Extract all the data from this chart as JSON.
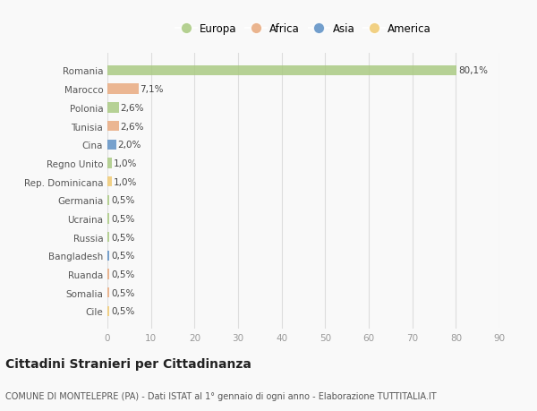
{
  "countries": [
    "Romania",
    "Marocco",
    "Polonia",
    "Tunisia",
    "Cina",
    "Regno Unito",
    "Rep. Dominicana",
    "Germania",
    "Ucraina",
    "Russia",
    "Bangladesh",
    "Ruanda",
    "Somalia",
    "Cile"
  ],
  "values": [
    80.1,
    7.1,
    2.6,
    2.6,
    2.0,
    1.0,
    1.0,
    0.5,
    0.5,
    0.5,
    0.5,
    0.5,
    0.5,
    0.5
  ],
  "labels": [
    "80,1%",
    "7,1%",
    "2,6%",
    "2,6%",
    "2,0%",
    "1,0%",
    "1,0%",
    "0,5%",
    "0,5%",
    "0,5%",
    "0,5%",
    "0,5%",
    "0,5%",
    "0,5%"
  ],
  "continents": [
    "Europa",
    "Africa",
    "Europa",
    "Africa",
    "Asia",
    "Europa",
    "America",
    "Europa",
    "Europa",
    "Europa",
    "Asia",
    "Africa",
    "Africa",
    "America"
  ],
  "continent_colors": {
    "Europa": "#a8c97f",
    "Africa": "#e8a87c",
    "Asia": "#5b8ec4",
    "America": "#f0c96e"
  },
  "legend_order": [
    "Europa",
    "Africa",
    "Asia",
    "America"
  ],
  "title": "Cittadini Stranieri per Cittadinanza",
  "subtitle": "COMUNE DI MONTELEPRE (PA) - Dati ISTAT al 1° gennaio di ogni anno - Elaborazione TUTTITALIA.IT",
  "xlim": [
    0,
    90
  ],
  "xticks": [
    0,
    10,
    20,
    30,
    40,
    50,
    60,
    70,
    80,
    90
  ],
  "background_color": "#f9f9f9",
  "grid_color": "#dddddd",
  "bar_height": 0.55,
  "title_fontsize": 10,
  "subtitle_fontsize": 7,
  "label_fontsize": 7.5,
  "tick_fontsize": 7.5,
  "legend_fontsize": 8.5
}
